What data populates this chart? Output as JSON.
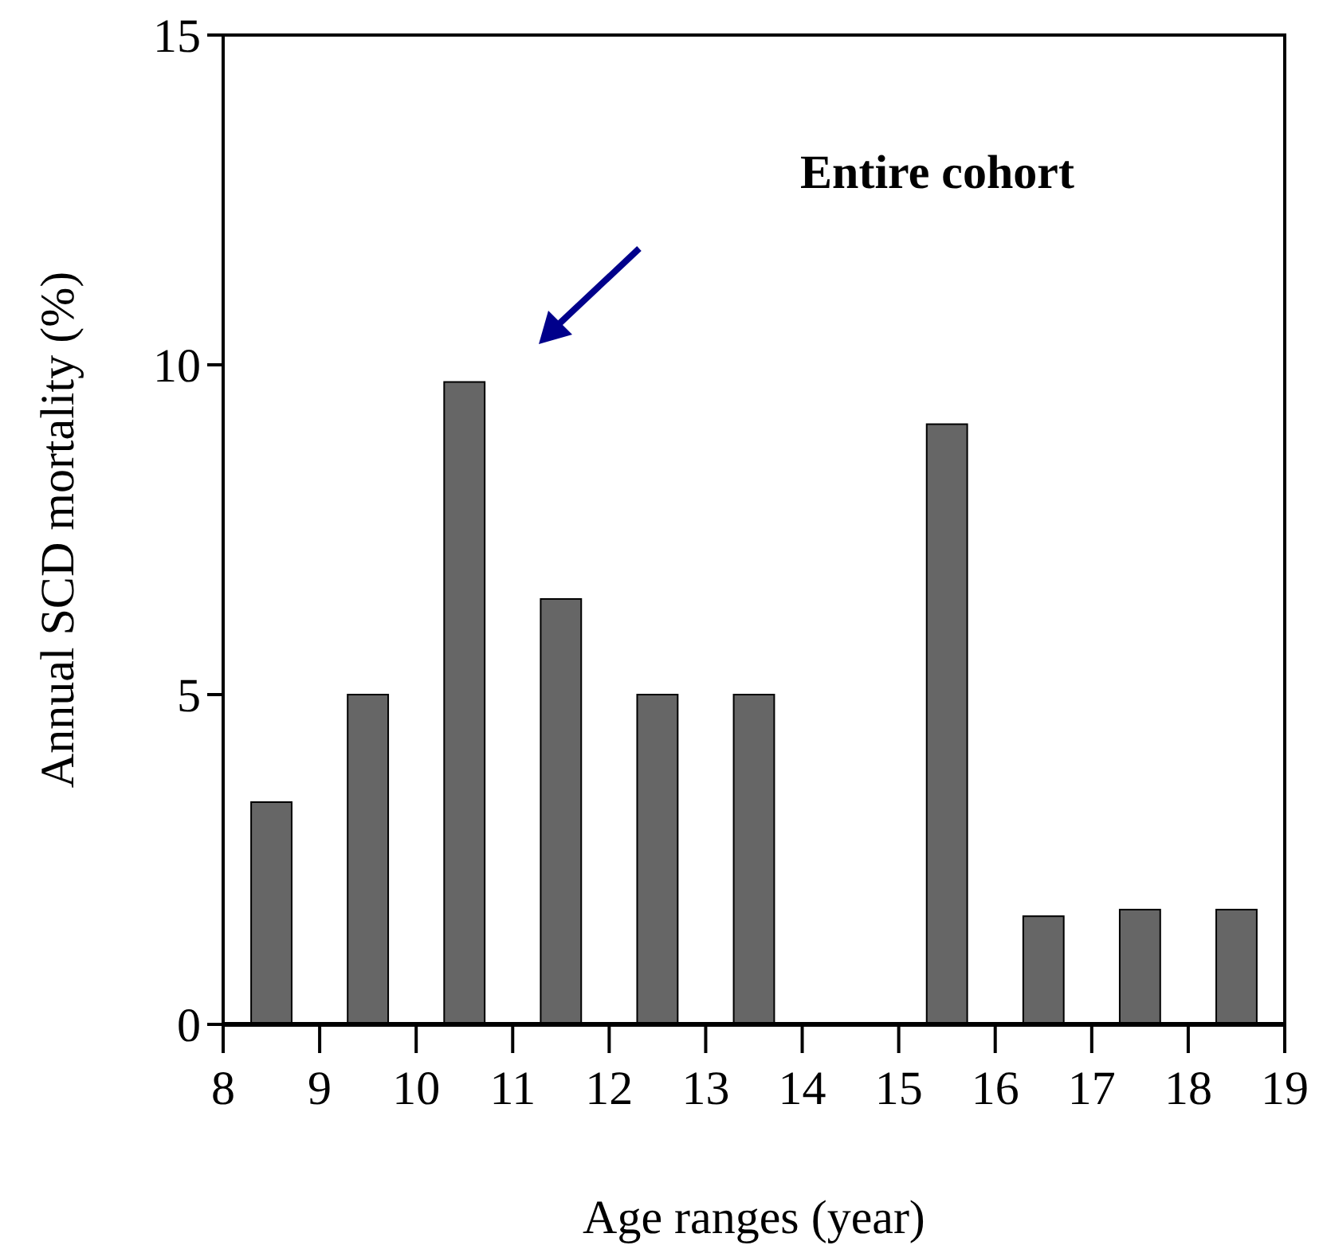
{
  "chart_data": {
    "type": "histogram",
    "xlabel": "Age ranges (year)",
    "ylabel": "Annual SCD mortality (%)",
    "annotations": [
      "Entire cohort"
    ],
    "bins": [
      8,
      9,
      10,
      11,
      12,
      13,
      14,
      15,
      16,
      17,
      18,
      19
    ],
    "values": [
      3.37,
      5,
      9.74,
      6.45,
      5,
      5,
      0,
      9.1,
      1.64,
      1.74,
      1.74
    ],
    "color": "#666666",
    "xlim": [
      8,
      19
    ],
    "xticks": [
      8,
      9,
      10,
      11,
      12,
      13,
      14,
      15,
      16,
      17,
      18,
      19
    ],
    "ylim": [
      0,
      15
    ],
    "yticks": [
      0,
      5,
      10,
      15
    ],
    "grid": false
  }
}
